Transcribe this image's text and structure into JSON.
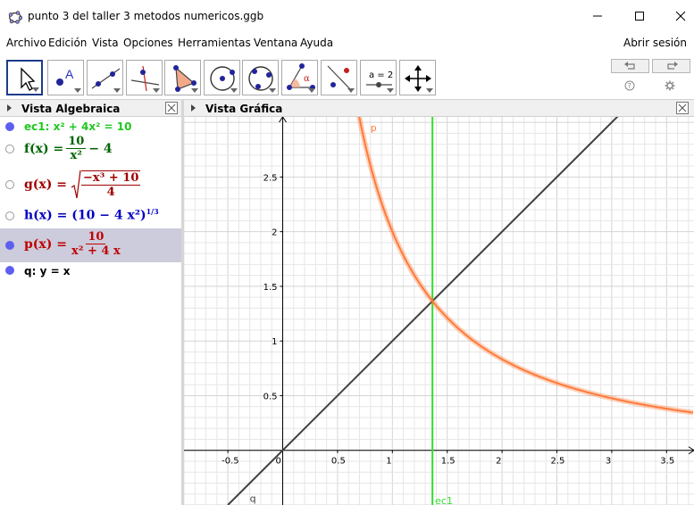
{
  "window": {
    "title": "punto 3 del taller 3 metodos numericos.ggb"
  },
  "menu": {
    "items": [
      "Archivo",
      "Edición",
      "Vista",
      "Opciones",
      "Herramientas",
      "Ventana",
      "Ayuda"
    ],
    "signin": "Abrir sesión"
  },
  "toolbar": {
    "tools": [
      "move-tool",
      "point-tool",
      "line-tool",
      "perpendicular-tool",
      "polygon-tool",
      "circle-center-tool",
      "circle-three-points-tool",
      "angle-tool",
      "reflect-tool",
      "slider-tool",
      "move-view-tool"
    ],
    "slider_label": "a = 2"
  },
  "algebra": {
    "title": "Vista Algebraica",
    "ec1": "ec1: x² + 4x² = 10",
    "f_lhs": "f(x) =",
    "f_num": "10",
    "f_den": "x²",
    "f_rest": "− 4",
    "g_lhs": "g(x) =",
    "g_num": "−x³ + 10",
    "g_den": "4",
    "h_lhs": "h(x) =",
    "h_body": "(10 − 4 x²)",
    "h_exp": "1/3",
    "p_lhs": "p(x) =",
    "p_num": "10",
    "p_den": "x² + 4 x",
    "q": "q: y = x",
    "colors": {
      "ec1": "#1fc81f",
      "f": "#006400",
      "g": "#a00000",
      "h": "#0000c0",
      "p": "#c00000",
      "q": "#000000"
    }
  },
  "graphics": {
    "title": "Vista Gráfica",
    "label_p": "p",
    "label_q": "q",
    "label_ec1": "ec1",
    "x_ticks": [
      "-0.5",
      "0",
      "0.5",
      "1",
      "1.5",
      "2",
      "2.5",
      "3",
      "3.5"
    ],
    "y_ticks": [
      "0.5",
      "1",
      "1.5",
      "2",
      "2.5"
    ],
    "colors": {
      "p": "#ff7a3a",
      "q": "#404040",
      "ec1": "#33dd33",
      "grid": "#e6e6e6"
    }
  },
  "chart_data": {
    "type": "line",
    "title": "",
    "xlabel": "",
    "ylabel": "",
    "xlim": [
      -0.9,
      3.75
    ],
    "ylim": [
      -0.5,
      3.05
    ],
    "grid": true,
    "series": [
      {
        "name": "p",
        "formula": "10/(x^2+4x)",
        "x": [
          0.75,
          1,
          1.5,
          2,
          2.5,
          3,
          3.5,
          3.75
        ],
        "y": [
          2.76,
          2.0,
          1.21,
          0.83,
          0.62,
          0.48,
          0.39,
          0.35
        ]
      },
      {
        "name": "q",
        "formula": "y = x",
        "x": [
          -0.5,
          3.1
        ],
        "y": [
          -0.5,
          3.1
        ]
      },
      {
        "name": "ec1",
        "formula": "x = 1.3653",
        "x": [
          1.3653,
          1.3653
        ],
        "y": [
          -0.5,
          3.05
        ]
      }
    ]
  }
}
